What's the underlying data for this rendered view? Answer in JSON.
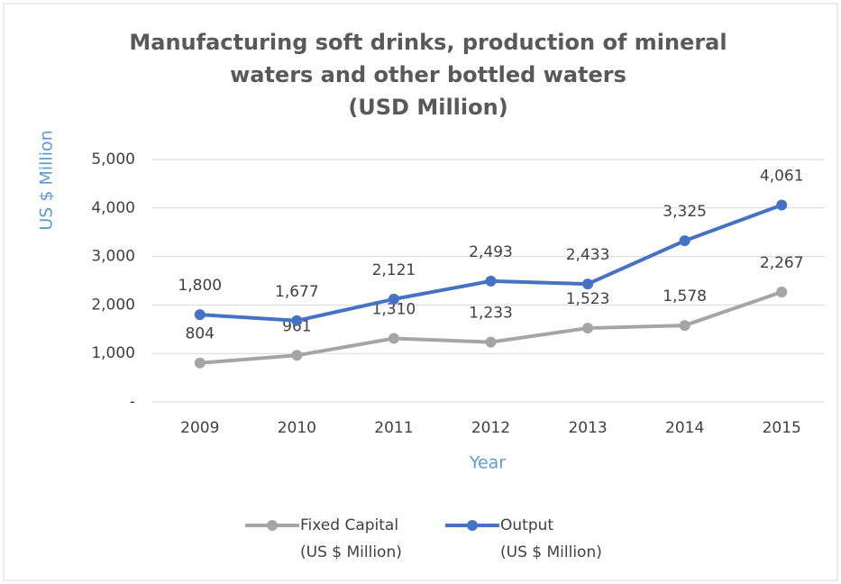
{
  "chart_data": {
    "type": "line",
    "title": [
      "Manufacturing soft drinks, production of mineral",
      "waters and other bottled waters",
      "(USD Million)"
    ],
    "x_label": "Year",
    "y_label": "US $ Million",
    "categories": [
      "2009",
      "2010",
      "2011",
      "2012",
      "2013",
      "2014",
      "2015"
    ],
    "series": [
      {
        "name": "Fixed Capital\n(US $ Million)",
        "color": "#a5a5a5",
        "values": [
          804,
          961,
          1310,
          1233,
          1523,
          1578,
          2267
        ],
        "value_labels": [
          "804",
          "961",
          "1,310",
          "1,233",
          "1,523",
          "1,578",
          "2,267"
        ]
      },
      {
        "name": "Output\n(US $ Million)",
        "color": "#4472c4",
        "values": [
          1800,
          1677,
          2121,
          2493,
          2433,
          3325,
          4061
        ],
        "value_labels": [
          "1,800",
          "1,677",
          "2,121",
          "2,493",
          "2,433",
          "3,325",
          "4,061"
        ]
      }
    ],
    "ylim": [
      0,
      5000
    ],
    "yticks": [
      {
        "value": 0,
        "label": "-"
      },
      {
        "value": 1000,
        "label": "1,000"
      },
      {
        "value": 2000,
        "label": "2,000"
      },
      {
        "value": 3000,
        "label": "3,000"
      },
      {
        "value": 4000,
        "label": "4,000"
      },
      {
        "value": 5000,
        "label": "5,000"
      }
    ],
    "grid": true,
    "legend": "bottom"
  }
}
